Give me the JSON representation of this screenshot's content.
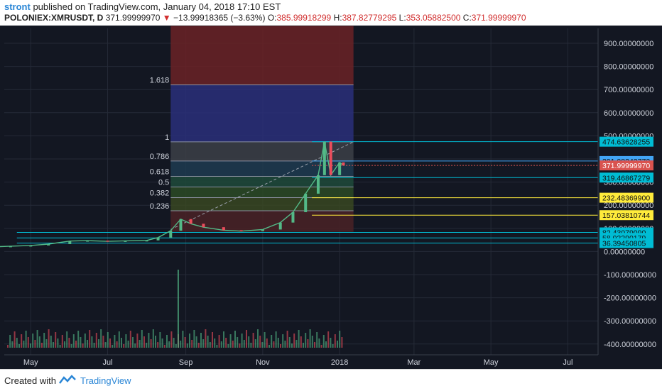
{
  "header": {
    "author": "stront",
    "published": " published on TradingView.com, January 04, 2018 17:10 EST",
    "symbol": "POLONIEX:XMRUSDT, D",
    "price": "371.99999970",
    "change": "−13.99918365 (−3.63%)",
    "o_label": "O:",
    "o": "385.99918299",
    "h_label": "H:",
    "h": "387.82779295",
    "l_label": "L:",
    "l": "353.05882500",
    "c_label": "C:",
    "c": "371.99999970"
  },
  "footer": {
    "created_with": "Created with",
    "brand": "TradingView"
  },
  "colors": {
    "background": "#131722",
    "up": "#53b987",
    "down": "#eb4d5c",
    "fib_line": "#e6e6e6",
    "price_line": "#d9534f",
    "hline_cyan": "#00bcd4",
    "hline_yellow": "#ffeb3b"
  },
  "chart_data": {
    "type": "candlestick",
    "price_axis": {
      "ticks": [
        900,
        800,
        700,
        600,
        500,
        400,
        300,
        200,
        100,
        0,
        -100,
        -200,
        -300,
        -400
      ],
      "tick_labels": [
        "900.00000000",
        "800.00000000",
        "700.00000000",
        "600.00000000",
        "500.00000000",
        "400.00000000",
        "300.00000000",
        "200.00000000",
        "100.00000000",
        "0.00000000",
        "-100.00000000",
        "-200.00000000",
        "-300.00000000",
        "-400.00000000"
      ],
      "range": [
        -470,
        975
      ]
    },
    "time_axis": {
      "tick_labels": [
        "May",
        "Jul",
        "Sep",
        "Nov",
        "2018",
        "Mar",
        "May",
        "Jul"
      ]
    },
    "series_close": [
      {
        "date": "2017-04-01",
        "close": 20
      },
      {
        "date": "2017-04-15",
        "close": 23
      },
      {
        "date": "2017-05-01",
        "close": 26
      },
      {
        "date": "2017-05-15",
        "close": 32
      },
      {
        "date": "2017-06-01",
        "close": 45
      },
      {
        "date": "2017-06-15",
        "close": 47
      },
      {
        "date": "2017-07-01",
        "close": 44
      },
      {
        "date": "2017-07-15",
        "close": 46
      },
      {
        "date": "2017-08-01",
        "close": 48
      },
      {
        "date": "2017-08-10",
        "close": 60
      },
      {
        "date": "2017-08-20",
        "close": 90
      },
      {
        "date": "2017-08-28",
        "close": 140
      },
      {
        "date": "2017-09-05",
        "close": 120
      },
      {
        "date": "2017-09-15",
        "close": 105
      },
      {
        "date": "2017-10-01",
        "close": 92
      },
      {
        "date": "2017-10-15",
        "close": 88
      },
      {
        "date": "2017-11-01",
        "close": 95
      },
      {
        "date": "2017-11-15",
        "close": 125
      },
      {
        "date": "2017-11-25",
        "close": 170
      },
      {
        "date": "2017-12-05",
        "close": 250
      },
      {
        "date": "2017-12-15",
        "close": 330
      },
      {
        "date": "2017-12-20",
        "close": 475
      },
      {
        "date": "2017-12-25",
        "close": 330
      },
      {
        "date": "2018-01-01",
        "close": 385
      },
      {
        "date": "2018-01-04",
        "close": 372
      }
    ],
    "fibonacci": [
      {
        "level": "1.618",
        "price": 720
      },
      {
        "level": "1",
        "price": 474
      },
      {
        "level": "0.786",
        "price": 391
      },
      {
        "level": "0.618",
        "price": 325
      },
      {
        "level": "0.5",
        "price": 279
      },
      {
        "level": "0.382",
        "price": 233
      },
      {
        "level": "0.236",
        "price": 176
      }
    ],
    "horizontal_levels": [
      {
        "price": 474.63628255,
        "label": "474.63628255",
        "color": "cyan"
      },
      {
        "price": 391.08242772,
        "label": "391.08242772",
        "color": "blue"
      },
      {
        "price": 371.9999997,
        "label": "371.99999970",
        "color": "red"
      },
      {
        "price": 319.46867279,
        "label": "319.46867279",
        "color": "cyan"
      },
      {
        "price": 232.483699,
        "label": "232.48369900",
        "color": "yellow"
      },
      {
        "price": 157.03810744,
        "label": "157.03810744",
        "color": "yellow"
      },
      {
        "price": 82.4307909,
        "label": "82.43079090",
        "color": "cyan"
      },
      {
        "price": 58.92290179,
        "label": "58.92290179",
        "color": "cyan"
      },
      {
        "price": 36.39450805,
        "label": "36.39450805",
        "color": "cyan"
      }
    ]
  }
}
